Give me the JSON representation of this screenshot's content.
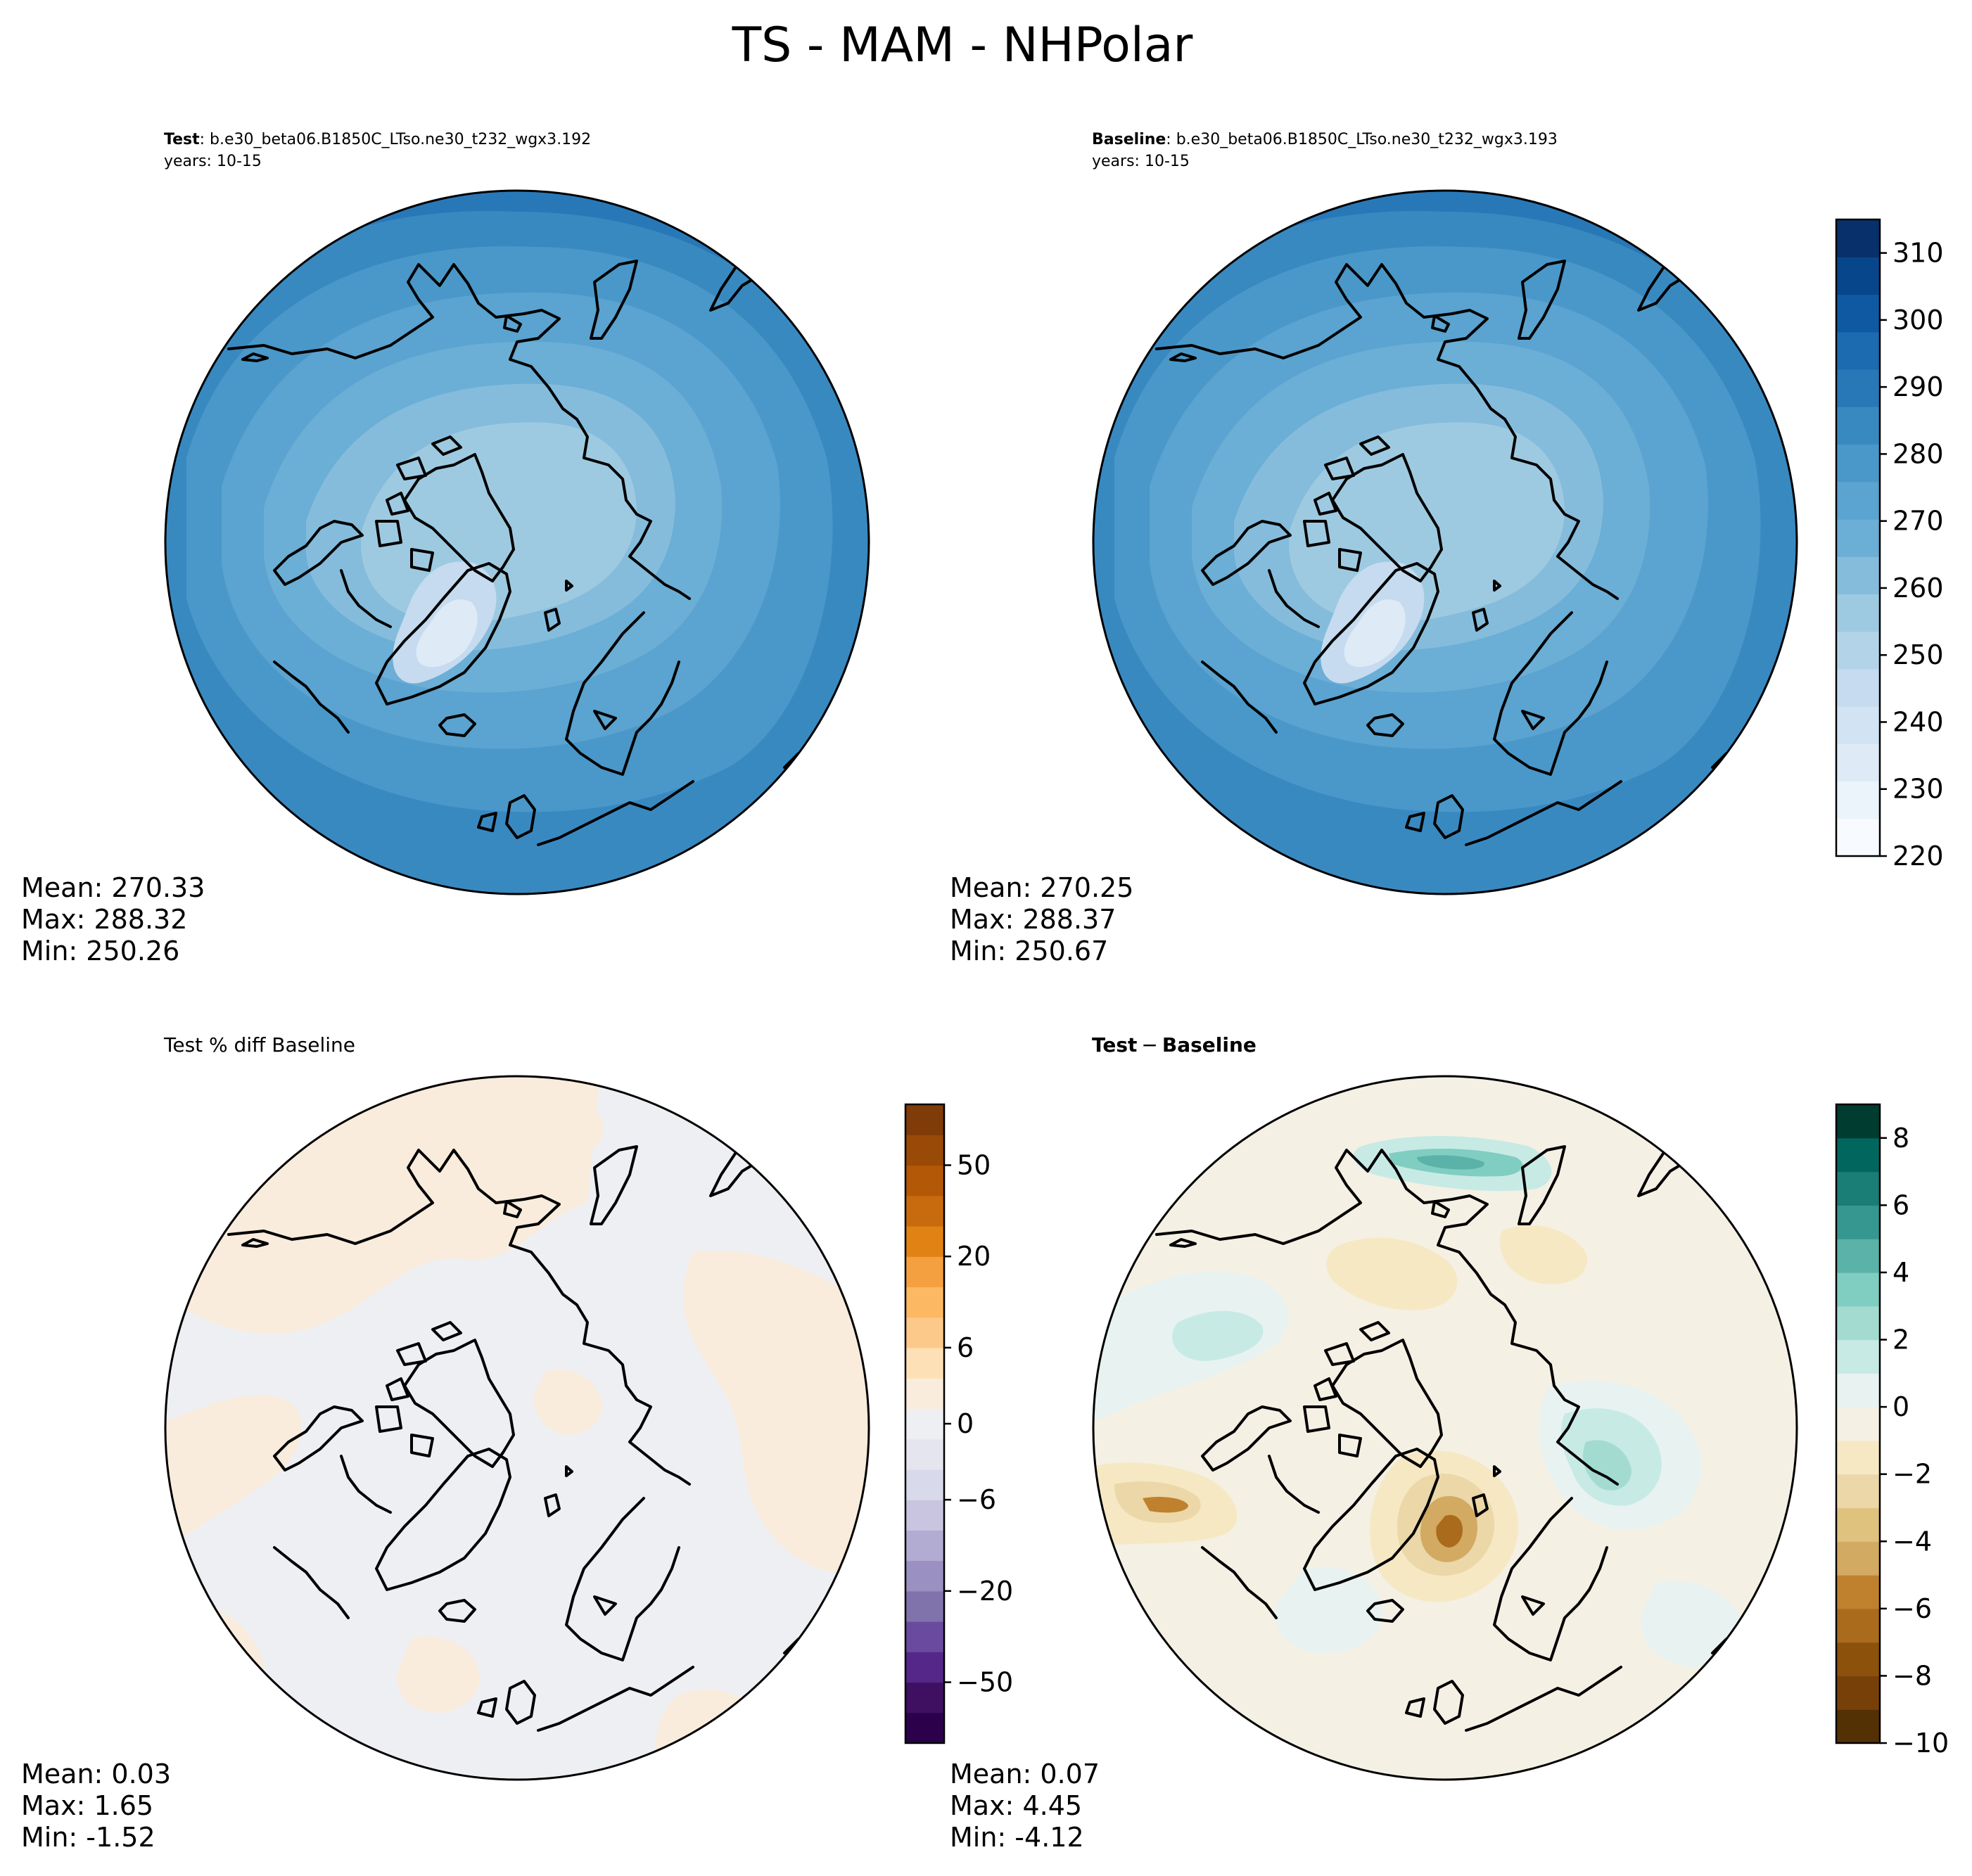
{
  "figure": {
    "title": "TS - MAM - NHPolar"
  },
  "panels": {
    "test": {
      "label": "Test",
      "case": ": b.e30_beta06.B1850C_LTso.ne30_t232_wgx3.192",
      "years": "years: 10-15",
      "stats": {
        "mean": "Mean: 270.33",
        "max": "Max: 288.32",
        "min": "Min: 250.26"
      }
    },
    "baseline": {
      "label": "Baseline",
      "case": ": b.e30_beta06.B1850C_LTso.ne30_t232_wgx3.193",
      "years": "years: 10-15",
      "stats": {
        "mean": "Mean: 270.25",
        "max": "Max: 288.37",
        "min": "Min: 250.67"
      }
    },
    "pctdiff": {
      "title": "Test % diff Baseline",
      "stats": {
        "mean": "Mean:  0.03",
        "max": "Max:  1.65",
        "min": "Min: -1.52"
      }
    },
    "diff": {
      "title_a": "Test",
      "title_minus": "−",
      "title_b": "Baseline",
      "stats": {
        "mean": "Mean:  0.07",
        "max": "Max:  4.45",
        "min": "Min: -4.12"
      }
    }
  },
  "colors": {
    "blues": [
      "#f7fbff",
      "#ebf3fb",
      "#deebf7",
      "#d2e3f3",
      "#c6dbef",
      "#b3d3e8",
      "#9ecae1",
      "#85bcdc",
      "#6baed6",
      "#5ba3d0",
      "#4a98c9",
      "#3989c1",
      "#2878b8",
      "#1c6aaf",
      "#0e59a2",
      "#08468b",
      "#08306b"
    ],
    "pct": [
      "#2d004b",
      "#3f0f61",
      "#542788",
      "#6a4a9e",
      "#8073ac",
      "#9a90c1",
      "#b2abd2",
      "#c9c5e0",
      "#d8daeb",
      "#e5e5ef",
      "#eeeff3",
      "#f9ecdc",
      "#fee0b6",
      "#fdc98a",
      "#fdb863",
      "#f4a040",
      "#e08214",
      "#c86a0e",
      "#b35806",
      "#9a4a07",
      "#7f3b08"
    ],
    "diff": [
      "#543005",
      "#784009",
      "#8c510a",
      "#aa6b1d",
      "#bf812d",
      "#d3aa62",
      "#dfc27d",
      "#ebd7a8",
      "#f6e8c3",
      "#f5f0e4",
      "#e8f3f1",
      "#c7eae5",
      "#a3dbd1",
      "#80cdc1",
      "#5bb2a8",
      "#35978f",
      "#1a7d76",
      "#01665e",
      "#003c30"
    ]
  },
  "chart_data": [
    {
      "type": "heatmap",
      "name": "test",
      "colorbar": {
        "ticks": [
          220,
          230,
          240,
          250,
          260,
          270,
          280,
          290,
          300,
          310
        ],
        "range": [
          220,
          315
        ]
      },
      "stats": {
        "mean": 270.33,
        "max": 288.32,
        "min": 250.26
      }
    },
    {
      "type": "heatmap",
      "name": "baseline",
      "colorbar": {
        "ticks": [
          220,
          230,
          240,
          250,
          260,
          270,
          280,
          290,
          300,
          310
        ],
        "range": [
          220,
          315
        ]
      },
      "stats": {
        "mean": 270.25,
        "max": 288.37,
        "min": 250.67
      }
    },
    {
      "type": "heatmap",
      "name": "pctdiff",
      "colorbar": {
        "ticks": [
          -50,
          -20,
          -6,
          0,
          6,
          20,
          50
        ],
        "tick_labels": [
          "−50",
          "−20",
          "−6",
          "0",
          "6",
          "20",
          "50"
        ]
      },
      "stats": {
        "mean": 0.03,
        "max": 1.65,
        "min": -1.52
      }
    },
    {
      "type": "heatmap",
      "name": "diff",
      "colorbar": {
        "ticks": [
          -10,
          -8,
          -6,
          -4,
          -2,
          0,
          2,
          4,
          6,
          8
        ],
        "tick_labels": [
          "−10",
          "−8",
          "−6",
          "−4",
          "−2",
          "0",
          "2",
          "4",
          "6",
          "8"
        ],
        "range": [
          -10,
          9
        ]
      },
      "stats": {
        "mean": 0.07,
        "max": 4.45,
        "min": -4.12
      }
    }
  ]
}
